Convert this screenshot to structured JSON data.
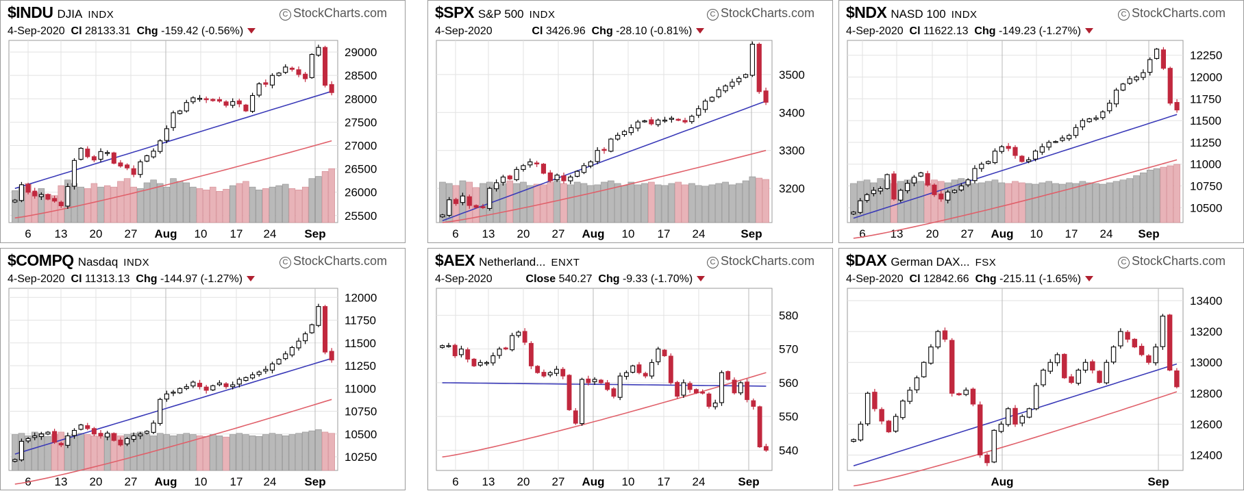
{
  "panels": [
    {
      "symbol": "$INDU",
      "name": "DJIA",
      "exchange": "INDX",
      "watermark": "StockCharts.com",
      "date": "4-Sep-2020",
      "close_label": "Cl",
      "close": "28133.31",
      "chg_label": "Chg",
      "chg": "-159.42 (-0.56%)",
      "xticks": [
        "6",
        "13",
        "20",
        "27",
        "Aug",
        "10",
        "17",
        "24",
        "Sep"
      ],
      "yticks": [
        "29000",
        "28500",
        "28000",
        "27500",
        "27000",
        "26500",
        "26000",
        "25500"
      ]
    },
    {
      "symbol": "$SPX",
      "name": "S&P 500",
      "exchange": "INDX",
      "watermark": "StockCharts.com",
      "date": "4-Sep-2020",
      "close_label": "Cl",
      "close": "3426.96",
      "chg_label": "Chg",
      "chg": "-28.10 (-0.81%)",
      "xticks": [
        "6",
        "13",
        "20",
        "27",
        "Aug",
        "10",
        "17",
        "24",
        "Sep"
      ],
      "yticks": [
        "3500",
        "3400",
        "3300",
        "3200"
      ]
    },
    {
      "symbol": "$NDX",
      "name": "NASD 100",
      "exchange": "INDX",
      "watermark": "StockCharts.com",
      "date": "4-Sep-2020",
      "close_label": "Cl",
      "close": "11622.13",
      "chg_label": "Chg",
      "chg": "-149.23 (-1.27%)",
      "xticks": [
        "6",
        "13",
        "20",
        "27",
        "Aug",
        "10",
        "17",
        "24",
        "Sep"
      ],
      "yticks": [
        "12250",
        "12000",
        "11750",
        "11500",
        "11250",
        "11000",
        "10750",
        "10500"
      ]
    },
    {
      "symbol": "$COMPQ",
      "name": "Nasdaq",
      "exchange": "INDX",
      "watermark": "StockCharts.com",
      "date": "4-Sep-2020",
      "close_label": "Cl",
      "close": "11313.13",
      "chg_label": "Chg",
      "chg": "-144.97 (-1.27%)",
      "xticks": [
        "6",
        "13",
        "20",
        "27",
        "Aug",
        "10",
        "17",
        "24",
        "Sep"
      ],
      "yticks": [
        "12000",
        "11750",
        "11500",
        "11250",
        "11000",
        "10750",
        "10500",
        "10250"
      ]
    },
    {
      "symbol": "$AEX",
      "name": "Netherland...",
      "exchange": "ENXT",
      "watermark": "StockCharts.com",
      "date": "4-Sep-2020",
      "close_label": "Close",
      "close": "540.27",
      "chg_label": "Chg",
      "chg": "-9.33 (-1.70%)",
      "xticks": [
        "6",
        "13",
        "20",
        "27",
        "Aug",
        "10",
        "17",
        "24",
        "Sep"
      ],
      "yticks": [
        "580",
        "570",
        "560",
        "550",
        "540"
      ]
    },
    {
      "symbol": "$DAX",
      "name": "German DAX...",
      "exchange": "FSX",
      "watermark": "StockCharts.com",
      "date": "4-Sep-2020",
      "close_label": "Cl",
      "close": "12842.66",
      "chg_label": "Chg",
      "chg": "-215.11 (-1.65%)",
      "xticks": [
        "Aug",
        "Sep"
      ],
      "yticks": [
        "13400",
        "13200",
        "13000",
        "12800",
        "12600",
        "12400"
      ]
    }
  ],
  "chart_data": [
    {
      "type": "candlestick",
      "title": "$INDU DJIA INDX",
      "ylim": [
        25350,
        29250
      ],
      "yticks": [
        25500,
        26000,
        26500,
        27000,
        27500,
        28000,
        28500,
        29000
      ],
      "closes": [
        25830,
        26160,
        26000,
        25920,
        25950,
        25850,
        25810,
        25710,
        26120,
        26680,
        26940,
        26760,
        26690,
        26870,
        26850,
        26620,
        26560,
        26520,
        26380,
        26650,
        26780,
        26880,
        27100,
        27360,
        27700,
        27740,
        27920,
        28020,
        28010,
        27980,
        27960,
        27950,
        27860,
        27940,
        27890,
        27740,
        28070,
        28320,
        28310,
        28500,
        28550,
        28680,
        28630,
        28520,
        28430,
        28950,
        29100,
        28290,
        28133
      ],
      "ma_blue": {
        "start": 26080,
        "end": 28160
      },
      "ma_red": {
        "start": 25450,
        "end": 27100
      },
      "volume": [
        0.45,
        0.5,
        0.55,
        0.42,
        0.48,
        0.4,
        0.38,
        0.52,
        0.6,
        0.55,
        0.5,
        0.48,
        0.55,
        0.5,
        0.52,
        0.5,
        0.58,
        0.62,
        0.5,
        0.48,
        0.56,
        0.6,
        0.55,
        0.5,
        0.62,
        0.58,
        0.56,
        0.5,
        0.48,
        0.46,
        0.5,
        0.44,
        0.47,
        0.52,
        0.55,
        0.58,
        0.5,
        0.46,
        0.48,
        0.5,
        0.52,
        0.54,
        0.48,
        0.46,
        0.5,
        0.62,
        0.65,
        0.72,
        0.76
      ],
      "xlabel": "",
      "ylabel": "",
      "grid": true
    },
    {
      "type": "candlestick",
      "title": "$SPX S&P 500 INDX",
      "ylim": [
        3110,
        3590
      ],
      "yticks": [
        3200,
        3300,
        3400,
        3500
      ],
      "closes": [
        3130,
        3170,
        3160,
        3180,
        3155,
        3150,
        3150,
        3200,
        3215,
        3230,
        3225,
        3250,
        3260,
        3270,
        3265,
        3240,
        3220,
        3235,
        3220,
        3230,
        3245,
        3260,
        3270,
        3300,
        3300,
        3330,
        3340,
        3350,
        3360,
        3375,
        3378,
        3370,
        3380,
        3380,
        3385,
        3380,
        3375,
        3390,
        3410,
        3430,
        3440,
        3460,
        3470,
        3480,
        3490,
        3500,
        3580,
        3455,
        3427
      ],
      "ma_blue": {
        "start": 3115,
        "end": 3430
      },
      "ma_red": {
        "start": 3110,
        "end": 3300
      },
      "volume": [
        0.6,
        0.58,
        0.55,
        0.62,
        0.6,
        0.52,
        0.58,
        0.6,
        0.56,
        0.58,
        0.62,
        0.58,
        0.6,
        0.55,
        0.57,
        0.56,
        0.6,
        0.62,
        0.58,
        0.56,
        0.6,
        0.58,
        0.55,
        0.56,
        0.6,
        0.62,
        0.58,
        0.55,
        0.6,
        0.56,
        0.58,
        0.6,
        0.56,
        0.55,
        0.58,
        0.6,
        0.56,
        0.58,
        0.55,
        0.54,
        0.56,
        0.58,
        0.6,
        0.56,
        0.58,
        0.62,
        0.68,
        0.66,
        0.64
      ],
      "xlabel": "",
      "ylabel": "",
      "grid": true
    },
    {
      "type": "candlestick",
      "title": "$NDX NASD 100 INDX",
      "ylim": [
        10330,
        12420
      ],
      "yticks": [
        10500,
        10750,
        11000,
        11250,
        11500,
        11750,
        12000,
        12250
      ],
      "closes": [
        10450,
        10580,
        10650,
        10700,
        10720,
        10880,
        10600,
        10700,
        10780,
        10850,
        10900,
        10760,
        10650,
        10600,
        10680,
        10700,
        10750,
        10820,
        10950,
        11000,
        11030,
        11150,
        11200,
        11180,
        11100,
        11030,
        11050,
        11150,
        11200,
        11250,
        11260,
        11300,
        11330,
        11420,
        11500,
        11520,
        11530,
        11600,
        11700,
        11850,
        11920,
        11980,
        12000,
        12050,
        12200,
        12320,
        12100,
        11700,
        11622
      ],
      "ma_blue": {
        "start": 10380,
        "end": 11570
      },
      "ma_red": {
        "start": 10150,
        "end": 11050
      },
      "volume": [
        0.55,
        0.58,
        0.6,
        0.56,
        0.62,
        0.6,
        0.55,
        0.58,
        0.6,
        0.62,
        0.58,
        0.55,
        0.6,
        0.58,
        0.56,
        0.6,
        0.62,
        0.58,
        0.55,
        0.56,
        0.58,
        0.6,
        0.56,
        0.55,
        0.58,
        0.56,
        0.55,
        0.54,
        0.56,
        0.58,
        0.55,
        0.54,
        0.56,
        0.55,
        0.58,
        0.56,
        0.55,
        0.54,
        0.56,
        0.58,
        0.6,
        0.62,
        0.66,
        0.7,
        0.74,
        0.76,
        0.78,
        0.8,
        0.82
      ],
      "xlabel": "",
      "ylabel": "",
      "grid": true
    },
    {
      "type": "candlestick",
      "title": "$COMPQ Nasdaq INDX",
      "ylim": [
        10100,
        12100
      ],
      "yticks": [
        10250,
        10500,
        10750,
        11000,
        11250,
        11500,
        11750,
        12000
      ],
      "closes": [
        10220,
        10420,
        10450,
        10480,
        10500,
        10520,
        10410,
        10380,
        10480,
        10540,
        10600,
        10560,
        10500,
        10480,
        10510,
        10430,
        10380,
        10450,
        10480,
        10500,
        10530,
        10620,
        10880,
        10940,
        10960,
        11000,
        11020,
        11070,
        11020,
        10980,
        11030,
        11060,
        11020,
        11040,
        11100,
        11120,
        11150,
        11180,
        11210,
        11270,
        11320,
        11380,
        11450,
        11520,
        11600,
        11700,
        11900,
        11400,
        11313
      ],
      "ma_blue": {
        "start": 10280,
        "end": 11330
      },
      "ma_red": {
        "start": 9950,
        "end": 10880
      },
      "volume": [
        0.58,
        0.6,
        0.56,
        0.62,
        0.6,
        0.55,
        0.58,
        0.62,
        0.56,
        0.58,
        0.6,
        0.58,
        0.56,
        0.55,
        0.58,
        0.6,
        0.56,
        0.58,
        0.6,
        0.62,
        0.58,
        0.56,
        0.6,
        0.58,
        0.56,
        0.58,
        0.6,
        0.58,
        0.56,
        0.55,
        0.58,
        0.56,
        0.54,
        0.58,
        0.6,
        0.58,
        0.56,
        0.55,
        0.58,
        0.6,
        0.58,
        0.56,
        0.58,
        0.6,
        0.62,
        0.64,
        0.66,
        0.62,
        0.6
      ],
      "xlabel": "",
      "ylabel": "",
      "grid": true
    },
    {
      "type": "candlestick",
      "title": "$AEX Netherland... ENXT",
      "ylim": [
        534,
        588
      ],
      "yticks": [
        540,
        550,
        560,
        570,
        580
      ],
      "closes": [
        571,
        571,
        568,
        570,
        567,
        565,
        566,
        566,
        568,
        570,
        570,
        574,
        575,
        572,
        565,
        563,
        562,
        563,
        564,
        562,
        552,
        548,
        561,
        560,
        561,
        560,
        558,
        556,
        562,
        563,
        565,
        563,
        562,
        566,
        570,
        568,
        560,
        556,
        560,
        558,
        557,
        557,
        553,
        554,
        563,
        561,
        557,
        560,
        555,
        553,
        541,
        540
      ],
      "ma_blue": {
        "start": 560,
        "end": 559
      },
      "ma_red": {
        "start": 538,
        "end": 563
      },
      "volume": [],
      "xlabel": "",
      "ylabel": "",
      "grid": true
    },
    {
      "type": "candlestick",
      "title": "$DAX German DAX... FSX",
      "ylim": [
        12300,
        13480
      ],
      "yticks": [
        12400,
        12600,
        12800,
        13000,
        13200,
        13400
      ],
      "closes": [
        12500,
        12600,
        12800,
        12700,
        12620,
        12550,
        12650,
        12750,
        12820,
        12900,
        13000,
        13100,
        13200,
        13150,
        12800,
        12790,
        12820,
        12730,
        12400,
        12350,
        12560,
        12600,
        12700,
        12600,
        12650,
        12700,
        12850,
        12950,
        13000,
        13050,
        12900,
        12870,
        12950,
        13000,
        12950,
        12870,
        13000,
        13100,
        13200,
        13150,
        13100,
        13050,
        13000,
        13100,
        13300,
        12950,
        12842
      ],
      "ma_blue": {
        "start": 12330,
        "end": 12990
      },
      "ma_red": {
        "start": 12200,
        "end": 12810
      },
      "volume": [],
      "xlabel": "",
      "ylabel": "",
      "grid": true
    }
  ]
}
